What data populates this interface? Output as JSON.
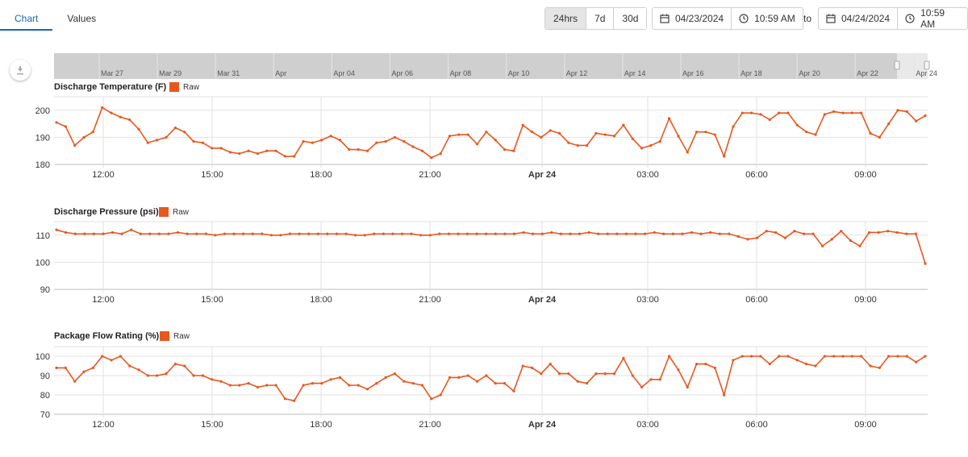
{
  "tabs": [
    {
      "label": "Chart",
      "active": true
    },
    {
      "label": "Values",
      "active": false
    }
  ],
  "range_buttons": [
    {
      "label": "24hrs",
      "active": true
    },
    {
      "label": "7d",
      "active": false
    },
    {
      "label": "30d",
      "active": false
    }
  ],
  "from": {
    "date": "04/23/2024",
    "time": "10:59 AM"
  },
  "to_label": "to",
  "to": {
    "date": "04/24/2024",
    "time": "10:59 AM"
  },
  "navigator": {
    "labels": [
      "Mar 27",
      "Mar 29",
      "Mar 31",
      "Apr",
      "Apr 04",
      "Apr 06",
      "Apr 08",
      "Apr 10",
      "Apr 12",
      "Apr 14",
      "Apr 16",
      "Apr 18",
      "Apr 20",
      "Apr 22",
      "Apr 24"
    ]
  },
  "colors": {
    "series": "#e8571e",
    "accent": "#1b67b5"
  },
  "x_ticks": [
    "12:00",
    "15:00",
    "18:00",
    "21:00",
    "Apr 24",
    "03:00",
    "06:00",
    "09:00"
  ],
  "chart_data": [
    {
      "type": "line",
      "title": "Discharge Temperature (F)",
      "series": [
        {
          "name": "Raw",
          "values": [
            195.5,
            194,
            187,
            190,
            192,
            201,
            199,
            197.5,
            196.5,
            193,
            188,
            189,
            190,
            193.5,
            192,
            188.5,
            188,
            186,
            186,
            184.5,
            184,
            185,
            184,
            185,
            185,
            183,
            183,
            188.5,
            188,
            189,
            190.5,
            189,
            185.5,
            185.5,
            185,
            188,
            188.5,
            190,
            188.5,
            186.5,
            185,
            182.5,
            184,
            190.5,
            191,
            191,
            187.5,
            192,
            189,
            185.5,
            185,
            194.5,
            192,
            190,
            192.5,
            191.5,
            188,
            187,
            187,
            191.5,
            191,
            190.5,
            194.5,
            189.5,
            186,
            187,
            188.5,
            197,
            190.5,
            184.5,
            192,
            192,
            191,
            183,
            194,
            199,
            199,
            198.5,
            196.5,
            199,
            199,
            194.5,
            192,
            191,
            198.5,
            199.5,
            199,
            199,
            199,
            191.5,
            190,
            195,
            200,
            199.5,
            196,
            198
          ]
        }
      ],
      "ylim": [
        180,
        205
      ],
      "yticks": [
        180,
        190,
        200
      ]
    },
    {
      "type": "line",
      "title": "Discharge Pressure (psi)",
      "series": [
        {
          "name": "Raw",
          "values": [
            112,
            111,
            110.5,
            110.5,
            110.5,
            110.5,
            111,
            110.5,
            112,
            110.5,
            110.5,
            110.5,
            110.5,
            111,
            110.5,
            110.5,
            110.5,
            110,
            110.5,
            110.5,
            110.5,
            110.5,
            110.5,
            110,
            110,
            110.5,
            110.5,
            110.5,
            110.5,
            110.5,
            110.5,
            110.5,
            110,
            110,
            110.5,
            110.5,
            110.5,
            110.5,
            110.5,
            110,
            110,
            110.5,
            110.5,
            110.5,
            110.5,
            110.5,
            110.5,
            110.5,
            110.5,
            110.5,
            111,
            110.5,
            110.5,
            111,
            110.5,
            110.5,
            110.5,
            111,
            110.5,
            110.5,
            110.5,
            110.5,
            110.5,
            110.5,
            111,
            110.5,
            110.5,
            110.5,
            111,
            110.5,
            111,
            110.5,
            110.5,
            109.5,
            108.5,
            109,
            111.5,
            111,
            109,
            111.5,
            110.5,
            110.5,
            106,
            108.5,
            111.5,
            108,
            106,
            111,
            111,
            111.5,
            111,
            110.5,
            110.5,
            99.5
          ]
        }
      ],
      "ylim": [
        90,
        115
      ],
      "yticks": [
        90,
        100,
        110
      ]
    },
    {
      "type": "line",
      "title": "Package Flow Rating (%)",
      "series": [
        {
          "name": "Raw",
          "values": [
            94,
            94,
            87,
            92,
            94,
            100,
            98,
            100,
            95,
            93,
            90,
            90,
            91,
            96,
            95,
            90,
            90,
            88,
            87,
            85,
            85,
            86,
            84,
            85,
            85,
            78,
            77,
            85,
            86,
            86,
            88,
            89,
            85,
            85,
            83,
            86,
            89,
            91,
            87,
            86,
            85,
            78,
            80,
            89,
            89,
            90,
            87,
            90,
            86,
            86,
            82,
            95,
            94,
            91,
            96,
            91,
            91,
            87,
            86,
            91,
            91,
            91,
            99,
            90,
            84,
            88,
            88,
            100,
            93,
            84,
            96,
            96,
            94,
            80,
            98,
            100,
            100,
            100,
            96,
            100,
            100,
            98,
            96,
            95,
            100,
            100,
            100,
            100,
            100,
            95,
            94,
            100,
            100,
            100,
            97,
            100
          ]
        }
      ],
      "ylim": [
        70,
        105
      ],
      "yticks": [
        70,
        80,
        90,
        100
      ]
    }
  ]
}
